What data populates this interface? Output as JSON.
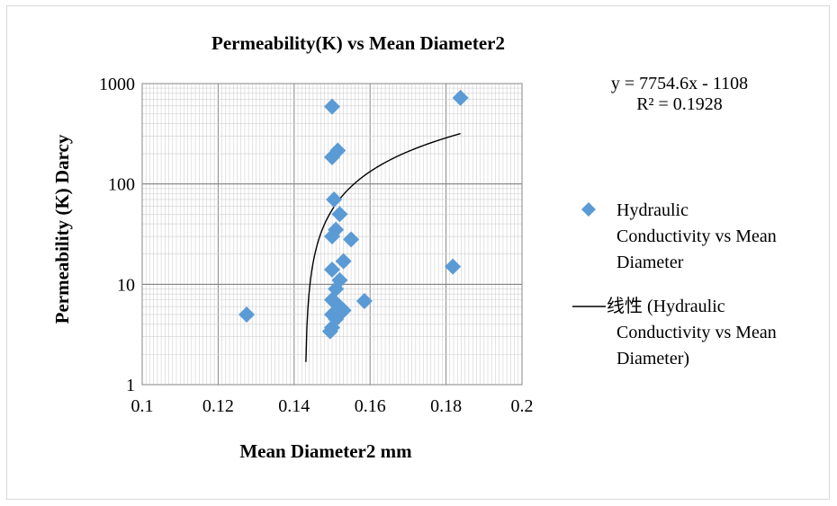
{
  "chart_data": {
    "type": "scatter",
    "title": "Permeability(K) vs Mean Diameter2",
    "xlabel": "Mean Diameter2 mm",
    "ylabel": "Permeability (K) Darcy",
    "xlim": [
      0.1,
      0.2
    ],
    "ylim": [
      1,
      1000
    ],
    "yscale": "log",
    "grid": true,
    "legend_position": "right",
    "x_ticks": [
      "0.1",
      "0.12",
      "0.14",
      "0.16",
      "0.18",
      "0.2"
    ],
    "y_ticks": [
      "1",
      "10",
      "100",
      "1000"
    ],
    "series": [
      {
        "name": "Hydraulic Conductivity vs Mean Diameter",
        "marker": "diamond",
        "color": "#5b9bd5",
        "points": [
          {
            "x": 0.1275,
            "y": 5
          },
          {
            "x": 0.15,
            "y": 590
          },
          {
            "x": 0.1838,
            "y": 720
          },
          {
            "x": 0.1515,
            "y": 215
          },
          {
            "x": 0.15,
            "y": 185
          },
          {
            "x": 0.1505,
            "y": 70
          },
          {
            "x": 0.152,
            "y": 50
          },
          {
            "x": 0.151,
            "y": 35
          },
          {
            "x": 0.15,
            "y": 30
          },
          {
            "x": 0.155,
            "y": 28
          },
          {
            "x": 0.153,
            "y": 17
          },
          {
            "x": 0.15,
            "y": 14
          },
          {
            "x": 0.1818,
            "y": 15
          },
          {
            "x": 0.152,
            "y": 11
          },
          {
            "x": 0.151,
            "y": 9
          },
          {
            "x": 0.15,
            "y": 7
          },
          {
            "x": 0.151,
            "y": 6.5
          },
          {
            "x": 0.1585,
            "y": 6.8
          },
          {
            "x": 0.153,
            "y": 5.5
          },
          {
            "x": 0.152,
            "y": 5.2
          },
          {
            "x": 0.15,
            "y": 5.0
          },
          {
            "x": 0.151,
            "y": 4.5
          },
          {
            "x": 0.15,
            "y": 3.7
          },
          {
            "x": 0.1495,
            "y": 3.4
          }
        ]
      },
      {
        "name": "线性 (Hydraulic Conductivity vs Mean Diameter)",
        "type": "trendline",
        "color": "#000000",
        "equation": "y = 7754.6x - 1108",
        "r_squared": "R² = 0.1928",
        "slope": 7754.6,
        "intercept": -1108,
        "x_range": [
          0.1431,
          0.1838
        ]
      }
    ]
  }
}
